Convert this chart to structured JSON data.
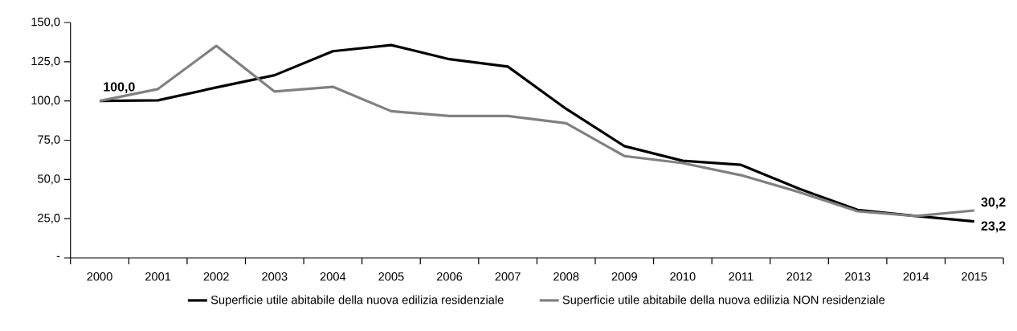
{
  "chart_data": {
    "type": "line",
    "categories": [
      "2000",
      "2001",
      "2002",
      "2003",
      "2004",
      "2005",
      "2006",
      "2007",
      "2008",
      "2009",
      "2010",
      "2011",
      "2012",
      "2013",
      "2014",
      "2015"
    ],
    "series": [
      {
        "name": "Superficie utile abitabile della nuova edilizia residenziale",
        "color": "#000000",
        "values": [
          100,
          100.4,
          108.6,
          116.4,
          131.7,
          135.6,
          126.6,
          121.9,
          95,
          71.2,
          61.9,
          59.3,
          44.0,
          30.6,
          26.7,
          23.2
        ],
        "value_labels": [
          "100,0",
          null,
          null,
          null,
          null,
          null,
          null,
          null,
          null,
          null,
          null,
          null,
          null,
          null,
          null,
          "23,2"
        ]
      },
      {
        "name": "Superficie utile abitabile della nuova edilizia NON residenziale",
        "color": "#808080",
        "values": [
          100,
          107.6,
          135.1,
          106.0,
          109.0,
          93.5,
          90.4,
          90.4,
          85.8,
          64.9,
          60.4,
          52.7,
          41.9,
          29.7,
          26.7,
          30.2
        ],
        "value_labels": [
          null,
          null,
          null,
          null,
          null,
          null,
          null,
          null,
          null,
          null,
          null,
          null,
          null,
          null,
          null,
          "30,2"
        ]
      }
    ],
    "ylim": [
      0,
      150
    ],
    "yticks": [
      {
        "value": 0,
        "label": "-"
      },
      {
        "value": 25,
        "label": "25,0"
      },
      {
        "value": 50,
        "label": "50,0"
      },
      {
        "value": 75,
        "label": "75,0"
      },
      {
        "value": 100,
        "label": "100,0"
      },
      {
        "value": 125,
        "label": "125,0"
      },
      {
        "value": 150,
        "label": "150,0"
      }
    ],
    "grid": false,
    "legend": "bottom",
    "marker": "none",
    "line_style": "solid"
  }
}
